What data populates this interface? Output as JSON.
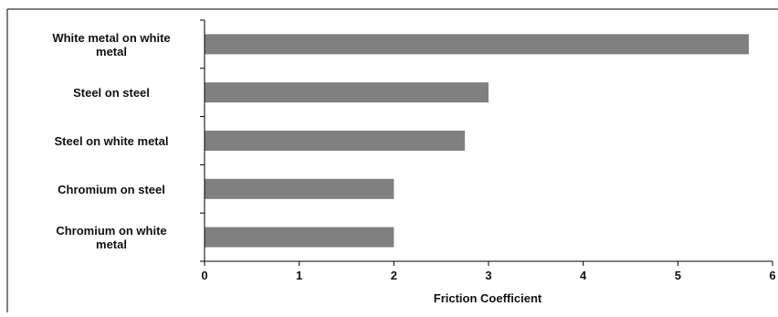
{
  "chart_data": {
    "type": "bar",
    "orientation": "horizontal",
    "categories": [
      "White metal on white metal",
      "Steel on steel",
      "Steel on white metal",
      "Chromium on steel",
      "Chromium on white metal"
    ],
    "category_label_lines": [
      [
        "White metal on white",
        "metal"
      ],
      [
        "Steel on steel"
      ],
      [
        "Steel on white metal"
      ],
      [
        "Chromium on steel"
      ],
      [
        "Chromium on white",
        "metal"
      ]
    ],
    "values": [
      5.75,
      3.0,
      2.75,
      2.0,
      2.0
    ],
    "xlabel": "Friction Coefficient",
    "ylabel": "",
    "xlim": [
      0,
      6
    ],
    "xticks": [
      "0",
      "1",
      "2",
      "3",
      "4",
      "5",
      "6"
    ],
    "grid": false,
    "legend": "none",
    "colors": {
      "bar": "#808080",
      "axis": "#000000",
      "text": "#111111",
      "frame": "#000000"
    }
  }
}
